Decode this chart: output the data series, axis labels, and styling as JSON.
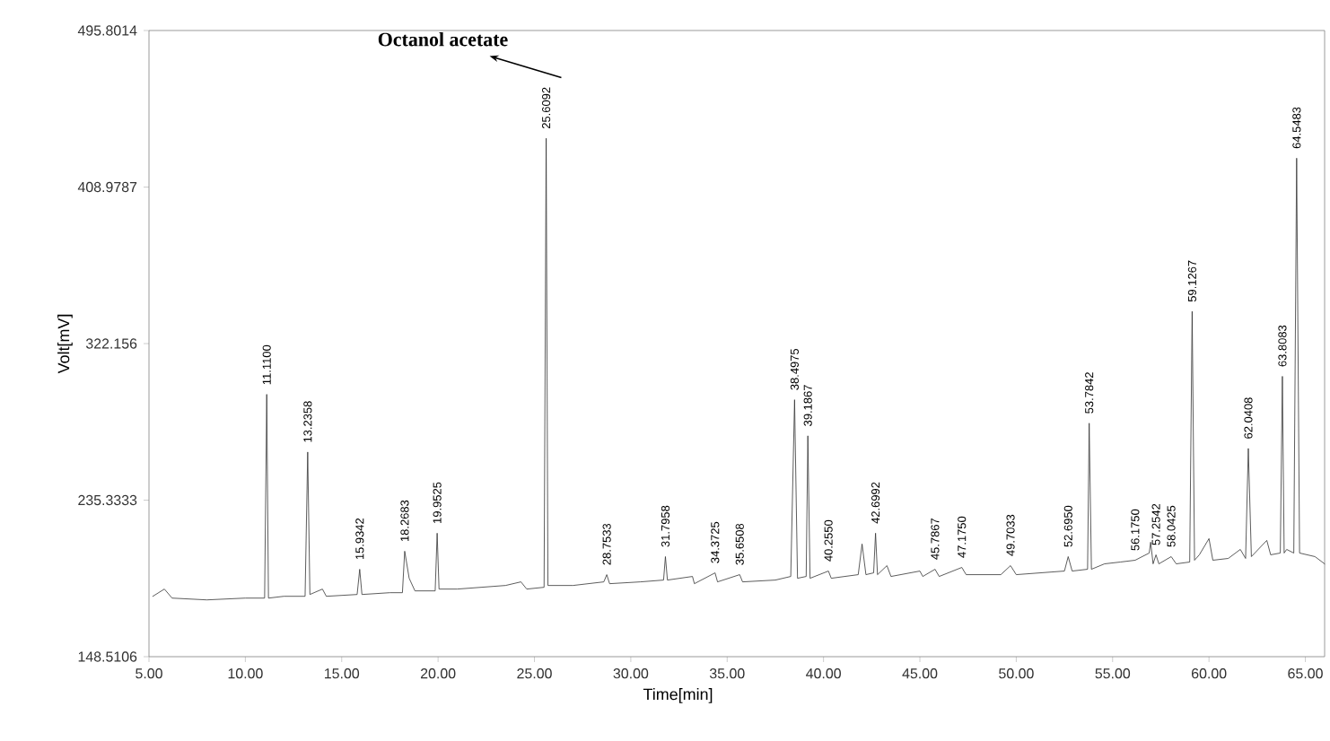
{
  "chart_data": {
    "type": "line",
    "xlabel": "Time[min]",
    "ylabel": "Volt[mV]",
    "color": "#333333",
    "xlim": [
      5,
      66
    ],
    "ylim": [
      148.5106,
      495.8014
    ],
    "xticks": [
      {
        "value": 5,
        "label": "5.00"
      },
      {
        "value": 10,
        "label": "10.00"
      },
      {
        "value": 15,
        "label": "15.00"
      },
      {
        "value": 20,
        "label": "20.00"
      },
      {
        "value": 25,
        "label": "25.00"
      },
      {
        "value": 30,
        "label": "30.00"
      },
      {
        "value": 35,
        "label": "35.00"
      },
      {
        "value": 40,
        "label": "40.00"
      },
      {
        "value": 45,
        "label": "45.00"
      },
      {
        "value": 50,
        "label": "50.00"
      },
      {
        "value": 55,
        "label": "55.00"
      },
      {
        "value": 60,
        "label": "60.00"
      },
      {
        "value": 65,
        "label": "65.00"
      }
    ],
    "yticks": [
      148.5106,
      235.3333,
      322.156,
      408.9787,
      495.8014
    ],
    "x": [
      5.2,
      5.8,
      6.2,
      8,
      10,
      11.0,
      11.11,
      11.2,
      12,
      13.1,
      13.2358,
      13.35,
      14.0,
      14.2,
      15.8,
      15.9342,
      16.05,
      17.5,
      18.15,
      18.2683,
      18.5,
      18.8,
      19.85,
      19.9525,
      20.05,
      21,
      23.5,
      24.3,
      24.6,
      25.5,
      25.6092,
      25.7,
      27,
      28.6,
      28.7533,
      28.9,
      30.5,
      31.7,
      31.7958,
      31.9,
      33.2,
      33.3,
      34.3725,
      34.5,
      35.65,
      35.8,
      37.5,
      38.3,
      38.4975,
      38.65,
      39.1,
      39.1867,
      39.3,
      40.255,
      40.4,
      41.8,
      42.0,
      42.2,
      42.6,
      42.6992,
      42.8,
      43.29,
      43.5,
      45,
      45.15,
      45.7867,
      46,
      47.175,
      47.4,
      49.2,
      49.7033,
      50,
      52.5,
      52.695,
      52.9,
      53.7,
      53.7842,
      53.9,
      54.58,
      55.4,
      56.17,
      56.9,
      56.9725,
      57.1,
      57.25,
      57.4,
      58.04,
      58.3,
      59.0,
      59.1267,
      59.25,
      59.5,
      60.0,
      60.2,
      61,
      61.6258,
      61.9,
      62.0408,
      62.2,
      63.0,
      63.2,
      63.7,
      63.8083,
      63.9,
      64.0317,
      64.4,
      64.5483,
      64.7,
      65.5,
      66
    ],
    "values": [
      182,
      186,
      181,
      180,
      181,
      181,
      294,
      181,
      182,
      182,
      262,
      183,
      186,
      182,
      183,
      197,
      183,
      184,
      184,
      207,
      192,
      185,
      185,
      217,
      186,
      186,
      188,
      190,
      186,
      187,
      436,
      188,
      188,
      190,
      194,
      189,
      190,
      191,
      204,
      191,
      193,
      189,
      195,
      190,
      194,
      190,
      191,
      193,
      291,
      192,
      193,
      271,
      192,
      196,
      192,
      194,
      211,
      194,
      195,
      217,
      194,
      199,
      193,
      196,
      193,
      197,
      193,
      198,
      194,
      194,
      199,
      194,
      196,
      204,
      196,
      197,
      278,
      197,
      200,
      201,
      202,
      206,
      212,
      200,
      205,
      200,
      204,
      200,
      201,
      340,
      202,
      205,
      214,
      202,
      203,
      208,
      203,
      264,
      204,
      213,
      205,
      206,
      304,
      206,
      208,
      206,
      425,
      206,
      204,
      200
    ],
    "annotations": [
      "Octanol acetate",
      {
        "text": "11.1100",
        "x": 11.11,
        "y": 294
      },
      {
        "text": "13.2358",
        "x": 13.2358,
        "y": 262
      },
      {
        "text": "15.9342",
        "x": 15.9342,
        "y": 197
      },
      {
        "text": "18.2683",
        "x": 18.2683,
        "y": 207
      },
      {
        "text": "19.9525",
        "x": 19.9525,
        "y": 217
      },
      {
        "text": "25.6092",
        "x": 25.6092,
        "y": 436
      },
      {
        "text": "28.7533",
        "x": 28.7533,
        "y": 194
      },
      {
        "text": "31.7958",
        "x": 31.7958,
        "y": 204
      },
      {
        "text": "34.3725",
        "x": 34.3725,
        "y": 195
      },
      {
        "text": "35.6508",
        "x": 35.65,
        "y": 194
      },
      {
        "text": "38.4975",
        "x": 38.4975,
        "y": 291
      },
      {
        "text": "39.1867",
        "x": 39.1867,
        "y": 271
      },
      {
        "text": "40.2550",
        "x": 40.255,
        "y": 196
      },
      {
        "text": "42.6992",
        "x": 42.6992,
        "y": 217
      },
      {
        "text": "45.7867",
        "x": 45.7867,
        "y": 197
      },
      {
        "text": "47.1750",
        "x": 47.175,
        "y": 198
      },
      {
        "text": "49.7033",
        "x": 49.7033,
        "y": 199
      },
      {
        "text": "52.6950",
        "x": 52.695,
        "y": 204
      },
      {
        "text": "53.7842",
        "x": 53.7842,
        "y": 278
      },
      {
        "text": "56.1750",
        "x": 56.17,
        "y": 202
      },
      {
        "text": "57.2542",
        "x": 57.25,
        "y": 205
      },
      {
        "text": "58.0425",
        "x": 58.04,
        "y": 204
      },
      {
        "text": "59.1267",
        "x": 59.1267,
        "y": 340
      },
      {
        "text": "62.0408",
        "x": 62.0408,
        "y": 264
      },
      {
        "text": "63.8083",
        "x": 63.8083,
        "y": 304
      },
      {
        "text": "64.5483",
        "x": 64.5483,
        "y": 425
      }
    ]
  }
}
